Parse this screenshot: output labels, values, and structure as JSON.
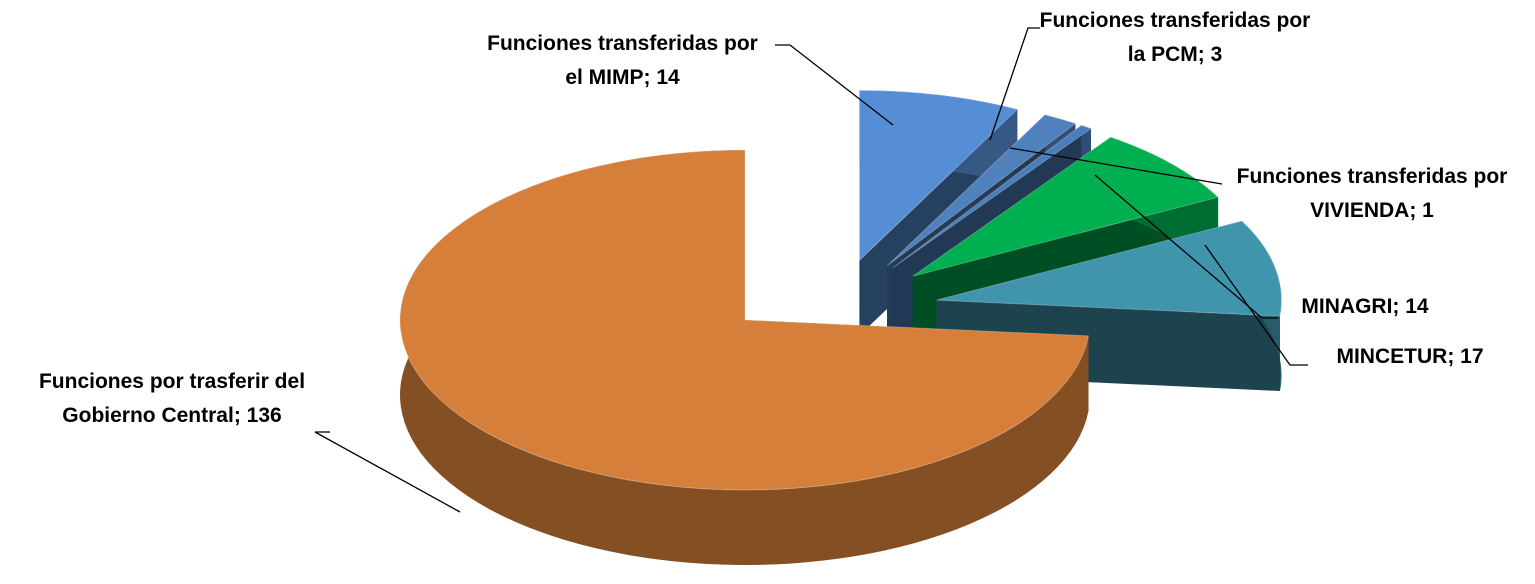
{
  "chart_data": {
    "type": "pie3d",
    "categories": [
      "Funciones transferidas por el MIMP",
      "Funciones transferidas por la PCM",
      "Funciones transferidas por VIVIENDA",
      "MINAGRI",
      "MINCETUR",
      "Funciones por trasferir del Gobierno Central"
    ],
    "values": [
      14,
      3,
      1,
      14,
      17,
      136
    ],
    "label_separator": "; ",
    "colors": [
      "#558ed5",
      "#4f81bd",
      "#4a7ebb",
      "#00b050",
      "#4095ad",
      "#d67f3a"
    ]
  }
}
